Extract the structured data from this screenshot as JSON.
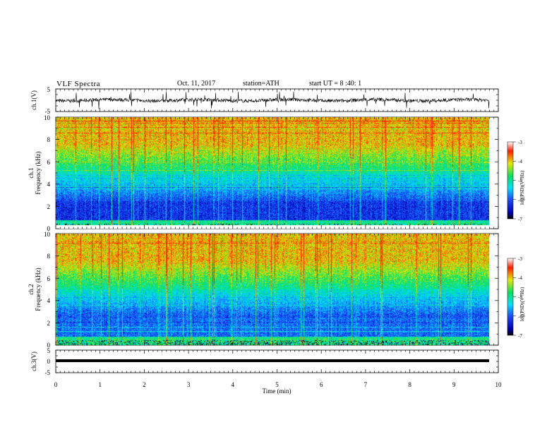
{
  "header": {
    "title": "VLF  Spectra",
    "date": "Oct. 11, 2017",
    "station": "station=ATH",
    "start": "start  UT  =   8  :40: 1"
  },
  "colors": {
    "spectrogram_scale": [
      "#000000",
      "#0000b0",
      "#1a4cff",
      "#00e0ff",
      "#00e060",
      "#e8e800",
      "#ff2000",
      "#ffffff"
    ]
  },
  "chart_data": [
    {
      "type": "line",
      "panel": "ch.1 waveform",
      "ylabel": "ch.1(V)",
      "ylim": [
        -5,
        5
      ],
      "yticks": [
        "5",
        "-5"
      ],
      "x": [
        0,
        1,
        2,
        3,
        4,
        5,
        6,
        7,
        8,
        9,
        9.8
      ],
      "y": [
        0,
        0,
        0,
        0,
        0,
        0,
        0,
        0,
        0,
        0,
        0
      ]
    },
    {
      "type": "heatmap",
      "panel": "ch.1 spectrogram",
      "ylabel": "ch.1\nFrequency  (kHz)",
      "ylim": [
        0,
        10
      ],
      "yticks": [
        "10",
        "8",
        "6",
        "4",
        "2",
        "0"
      ],
      "colorbar": {
        "label": "log(PSD)(V²/Hz)",
        "ticks": [
          "-3",
          "-4",
          "-5",
          "-6",
          "-7"
        ],
        "range": [
          -7,
          -3
        ]
      }
    },
    {
      "type": "heatmap",
      "panel": "ch.2 spectrogram",
      "ylabel": "ch.2\nFrequency  (kHz)",
      "ylim": [
        0,
        10
      ],
      "yticks": [
        "10",
        "8",
        "6",
        "4",
        "2",
        "0"
      ],
      "colorbar": {
        "label": "log(PSD)(V²/Hz)",
        "ticks": [
          "-3",
          "-4",
          "-5",
          "-6",
          "-7"
        ],
        "range": [
          -7,
          -3
        ]
      }
    },
    {
      "type": "line",
      "panel": "ch.3 waveform",
      "ylabel": "ch.3(V)",
      "ylim": [
        -5,
        5
      ],
      "yticks": [
        "5",
        "0",
        "-5"
      ],
      "x": [
        0,
        9.8
      ],
      "y": [
        0,
        0
      ]
    }
  ],
  "xaxis": {
    "label": "Time  (min)",
    "range": [
      0,
      10
    ],
    "ticks": [
      "0",
      "1",
      "2",
      "3",
      "4",
      "5",
      "6",
      "7",
      "8",
      "9",
      "10"
    ]
  }
}
